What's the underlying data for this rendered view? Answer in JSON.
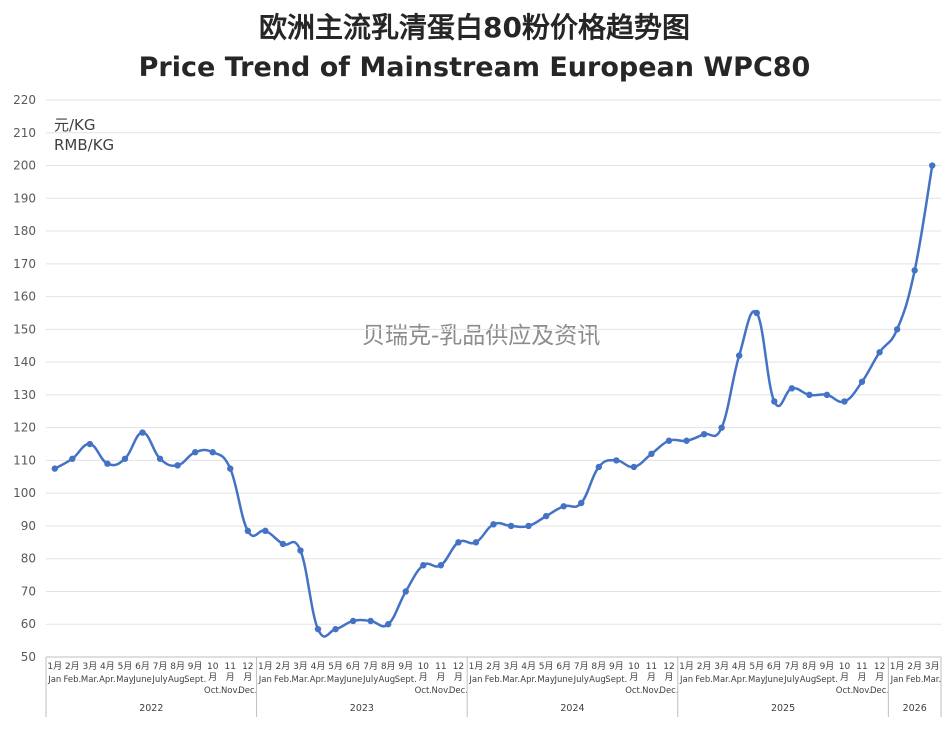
{
  "chart_data": {
    "type": "line",
    "title": "欧洲主流乳清蛋白80粉价格趋势图",
    "subtitle": "Price Trend of Mainstream European WPC80",
    "ylabel_cn": "元/KG",
    "ylabel_en": "RMB/KG",
    "watermark": "贝瑞克-乳品供应及资讯",
    "ylim": [
      50,
      220
    ],
    "yticks": [
      50,
      60,
      70,
      80,
      90,
      100,
      110,
      120,
      130,
      140,
      150,
      160,
      170,
      180,
      190,
      200,
      210,
      220
    ],
    "grid": true,
    "line_color": "#4472C4",
    "month_labels": [
      {
        "cn": "1月",
        "en": "Jan"
      },
      {
        "cn": "2月",
        "en": "Feb."
      },
      {
        "cn": "3月",
        "en": "Mar."
      },
      {
        "cn": "4月",
        "en": "Apr."
      },
      {
        "cn": "5月",
        "en": "May"
      },
      {
        "cn": "6月",
        "en": "June"
      },
      {
        "cn": "7月",
        "en": "July"
      },
      {
        "cn": "8月",
        "en": "Aug."
      },
      {
        "cn": "9月",
        "en": "Sept."
      },
      {
        "cn": "10月",
        "en": "Oct."
      },
      {
        "cn": "11月",
        "en": "Nov."
      },
      {
        "cn": "12月",
        "en": "Dec."
      }
    ],
    "years": [
      {
        "label": "2022",
        "months": 12
      },
      {
        "label": "2023",
        "months": 12
      },
      {
        "label": "2024",
        "months": 12
      },
      {
        "label": "2025",
        "months": 12
      },
      {
        "label": "2026",
        "months": 3
      }
    ],
    "series": [
      {
        "values": [
          107.5,
          110.5,
          115,
          109,
          110.5,
          118.5,
          110.5,
          108.5,
          112.5,
          112.5,
          107.5,
          88.5,
          88.5,
          84.5,
          82.5,
          58.5,
          58.5,
          61,
          61,
          60,
          70,
          78,
          78,
          85,
          85,
          90.5,
          90,
          90,
          93,
          96,
          97,
          108,
          110,
          108,
          112,
          116,
          116,
          118,
          120,
          142,
          155,
          128,
          132,
          130,
          130,
          128,
          134,
          143,
          150,
          168,
          200
        ]
      }
    ]
  }
}
